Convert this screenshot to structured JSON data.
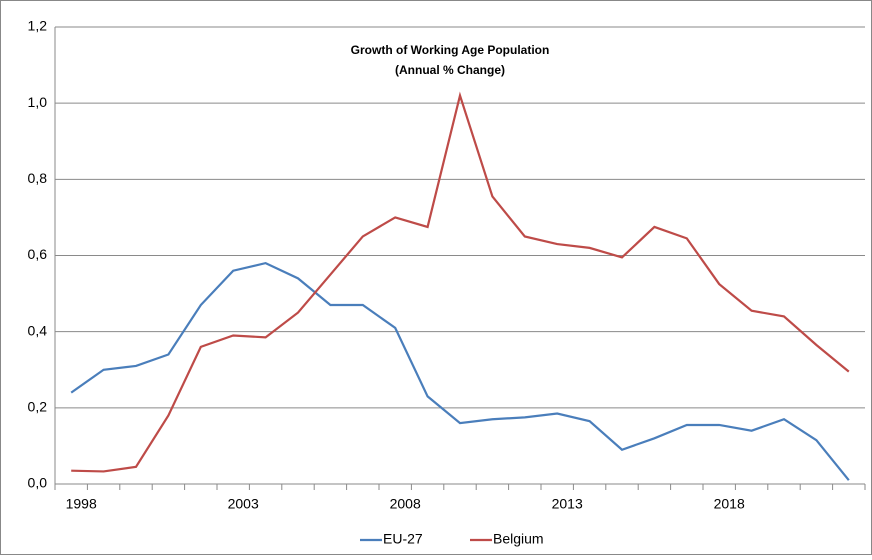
{
  "chart_data": {
    "type": "line",
    "title": "Growth of Working Age Population",
    "subtitle": "(Annual % Change)",
    "categories": [
      "1998",
      null,
      null,
      null,
      null,
      "2003",
      null,
      null,
      null,
      null,
      "2008",
      null,
      null,
      null,
      null,
      "2013",
      null,
      null,
      null,
      null,
      "2018",
      null,
      null,
      null,
      null
    ],
    "series": [
      {
        "name": "EU-27",
        "color": "#4a7ebb",
        "values": [
          0.24,
          0.3,
          0.31,
          0.34,
          0.47,
          0.56,
          0.58,
          0.54,
          0.47,
          0.47,
          0.41,
          0.23,
          0.16,
          0.17,
          0.175,
          0.185,
          0.165,
          0.09,
          0.12,
          0.155,
          0.155,
          0.14,
          0.17,
          0.115,
          0.01
        ]
      },
      {
        "name": "Belgium",
        "color": "#be4b48",
        "values": [
          0.035,
          0.033,
          0.045,
          0.18,
          0.36,
          0.39,
          0.385,
          0.45,
          0.55,
          0.65,
          0.7,
          0.675,
          1.02,
          0.755,
          0.65,
          0.63,
          0.62,
          0.595,
          0.675,
          0.645,
          0.525,
          0.455,
          0.44,
          0.365,
          0.295
        ]
      }
    ],
    "ylim": [
      0,
      1.2
    ],
    "yticks": [
      {
        "value": 0,
        "label": "0,0"
      },
      {
        "value": 0.2,
        "label": "0,2"
      },
      {
        "value": 0.4,
        "label": "0,4"
      },
      {
        "value": 0.6,
        "label": "0,6"
      },
      {
        "value": 0.8,
        "label": "0,8"
      },
      {
        "value": 1.0,
        "label": "1,0"
      },
      {
        "value": 1.2,
        "label": "1,2"
      }
    ],
    "grid": true,
    "legend": "bottom"
  }
}
